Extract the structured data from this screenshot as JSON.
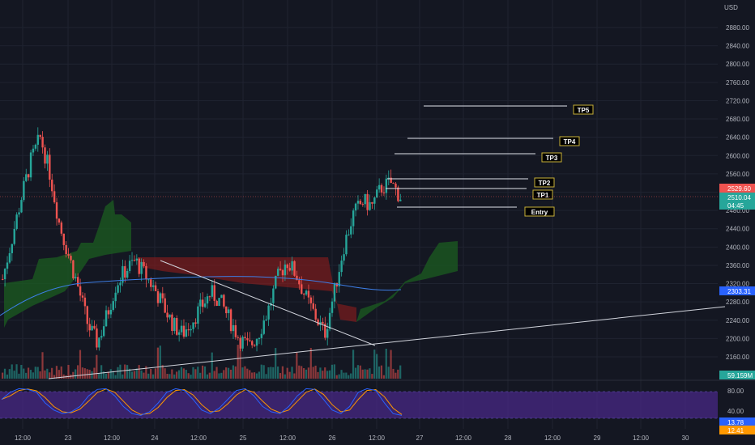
{
  "currency": "USD",
  "colors": {
    "background": "#141722",
    "up": "#26a69a",
    "down": "#ef5350",
    "cloud_bull": "#1b5e20",
    "cloud_bear": "#8e1c1c",
    "ma": "#3d7ee6",
    "stoch_k": "#2962ff",
    "stoch_d": "#ff9800",
    "stoch_band": "#4a2a8c",
    "label_gold": "#c9b037"
  },
  "price_axis": {
    "ticks": [
      "2880.00",
      "2840.00",
      "2800.00",
      "2760.00",
      "2720.00",
      "2680.00",
      "2640.00",
      "2600.00",
      "2560.00",
      "2520.00",
      "2480.00",
      "2440.00",
      "2400.00",
      "2360.00",
      "2320.00",
      "2280.00",
      "2240.00",
      "2200.00",
      "2160.00"
    ],
    "last_price": "2529.60",
    "current_price": "2510.04",
    "countdown": "04:45",
    "ma_value": "2303.31",
    "volume_value": "59.159M"
  },
  "time_axis": {
    "labels": [
      "12:00",
      "23",
      "12:00",
      "24",
      "12:00",
      "25",
      "12:00",
      "26",
      "12:00",
      "27",
      "12:00",
      "28",
      "12:00",
      "29",
      "12:00",
      "30"
    ]
  },
  "stoch_axis": {
    "ticks": [
      "80.00",
      "40.00"
    ],
    "k_value": "13.78",
    "d_value": "12.41"
  },
  "targets": [
    {
      "label": "TP5",
      "price": 2712
    },
    {
      "label": "TP4",
      "price": 2646
    },
    {
      "label": "TP3",
      "price": 2603
    },
    {
      "label": "TP2",
      "price": 2552
    },
    {
      "label": "TP1",
      "price": 2532
    },
    {
      "label": "Entry",
      "price": 2496
    }
  ],
  "chart_data": {
    "type": "candlestick",
    "instrument_currency": "USD",
    "y_range": [
      2140,
      2920
    ],
    "x_labels": [
      "12:00",
      "23",
      "12:00",
      "24",
      "12:00",
      "25",
      "12:00",
      "26",
      "12:00",
      "27",
      "12:00",
      "28",
      "12:00",
      "29",
      "12:00",
      "30"
    ],
    "close_path": [
      2330,
      2420,
      2510,
      2590,
      2640,
      2560,
      2450,
      2380,
      2310,
      2230,
      2190,
      2250,
      2320,
      2350,
      2370,
      2340,
      2310,
      2270,
      2230,
      2210,
      2240,
      2270,
      2300,
      2280,
      2240,
      2200,
      2180,
      2210,
      2260,
      2330,
      2370,
      2340,
      2290,
      2250,
      2210,
      2300,
      2400,
      2470,
      2500,
      2490,
      2530,
      2540,
      2510
    ],
    "cloud_bull": [
      [
        0,
        2270,
        2320
      ],
      [
        3,
        2300,
        2330
      ],
      [
        5,
        2410,
        2480
      ],
      [
        7,
        2380,
        2460
      ],
      [
        9,
        2330,
        2360
      ],
      [
        10,
        2300,
        2350
      ]
    ],
    "cloud_bear": [
      [
        16,
        2320,
        2360
      ],
      [
        20,
        2310,
        2370
      ],
      [
        28,
        2330,
        2380
      ],
      [
        33,
        2250,
        2290
      ]
    ],
    "moving_average": [
      2280,
      2300,
      2310,
      2315,
      2318,
      2320,
      2322,
      2318,
      2315,
      2310,
      2308,
      2306,
      2305,
      2303
    ],
    "stochastic": {
      "range": [
        0,
        100
      ],
      "ticks": [
        80,
        40
      ],
      "k_last": 13.78,
      "d_last": 12.41
    },
    "targets": [
      {
        "label": "TP5",
        "price": 2712
      },
      {
        "label": "TP4",
        "price": 2646
      },
      {
        "label": "TP3",
        "price": 2603
      },
      {
        "label": "TP2",
        "price": 2552
      },
      {
        "label": "TP1",
        "price": 2532
      },
      {
        "label": "Entry",
        "price": 2496
      }
    ]
  }
}
